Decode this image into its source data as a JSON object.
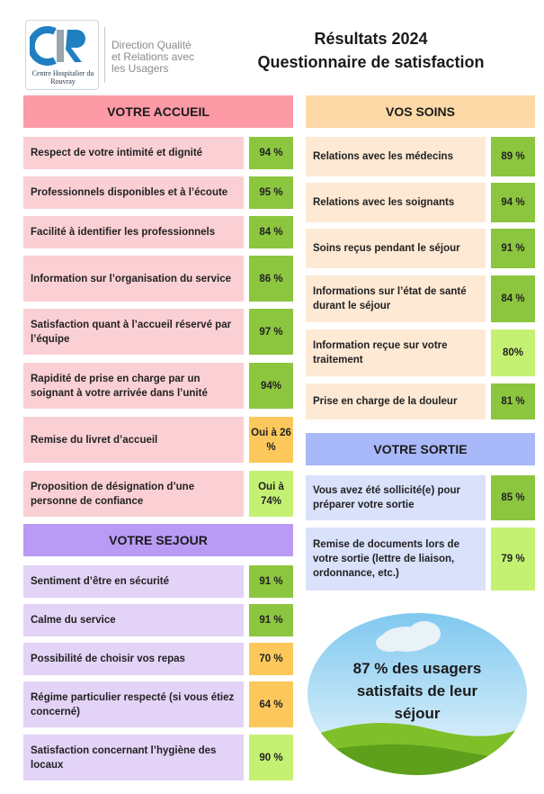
{
  "header": {
    "logo_text": "Centre Hospitalier du Rouvray",
    "department": [
      "Direction Qualité",
      "et Relations avec",
      "les Usagers"
    ],
    "title": [
      "Résultats 2024",
      "Questionnaire de satisfaction"
    ]
  },
  "colors": {
    "accueil_header": "#fc9aa5",
    "accueil_row": "#fbd0d5",
    "soins_header": "#fdd9a8",
    "soins_row": "#fde9d4",
    "sejour_header": "#b99af5",
    "sejour_row": "#e2d3f7",
    "sortie_header": "#a9b8f8",
    "sortie_row": "#d9e1fb",
    "value_green": "#8cc63f",
    "value_light_green": "#c5f173",
    "value_orange": "#fcc85c"
  },
  "accueil": {
    "title": "VOTRE ACCUEIL",
    "rows": [
      {
        "label": "Respect de votre intimité et dignité",
        "value": "94 %"
      },
      {
        "label": "Professionnels disponibles et à l’écoute",
        "value": "95 %"
      },
      {
        "label": "Facilité à identifier les professionnels",
        "value": "84 %"
      },
      {
        "label": "Information sur l’organisation du service",
        "value": "86 %"
      },
      {
        "label": "Satisfaction quant à l’accueil réservé par l’équipe",
        "value": "97 %"
      },
      {
        "label": "Rapidité de prise en charge par un soignant à votre arrivée dans l’unité",
        "value": "94%"
      },
      {
        "label": "Remise du livret d’accueil",
        "value": "Oui à 26 %"
      },
      {
        "label": "Proposition de désignation d’une personne de confiance",
        "value": "Oui à 74%"
      }
    ]
  },
  "sejour": {
    "title": "VOTRE SEJOUR",
    "rows": [
      {
        "label": "Sentiment d’être en sécurité",
        "value": "91 %"
      },
      {
        "label": "Calme du service",
        "value": "91 %"
      },
      {
        "label": "Possibilité de choisir vos repas",
        "value": "70 %"
      },
      {
        "label": "Régime particulier respecté (si vous étiez concerné)",
        "value": "64 %"
      },
      {
        "label": "Satisfaction concernant l’hygiène des locaux",
        "value": "90 %"
      }
    ]
  },
  "soins": {
    "title": "VOS SOINS",
    "rows": [
      {
        "label": "Relations avec les médecins",
        "value": "89 %"
      },
      {
        "label": "Relations avec les soignants",
        "value": "94 %"
      },
      {
        "label": "Soins reçus pendant le séjour",
        "value": "91 %"
      },
      {
        "label": "Informations sur l’état de santé durant le séjour",
        "value": "84 %"
      },
      {
        "label": "Information reçue sur votre traitement",
        "value": "80%"
      },
      {
        "label": "Prise en charge de la douleur",
        "value": "81 %"
      }
    ]
  },
  "sortie": {
    "title": "VOTRE SORTIE",
    "rows": [
      {
        "label": "Vous avez été sollicité(e) pour préparer votre sortie",
        "value": "85 %"
      },
      {
        "label": "Remise de documents lors de votre sortie (lettre de liaison, ordonnance, etc.)",
        "value": "79 %"
      }
    ]
  },
  "summary": {
    "text": "87 % des usagers satisfaits de leur séjour"
  }
}
